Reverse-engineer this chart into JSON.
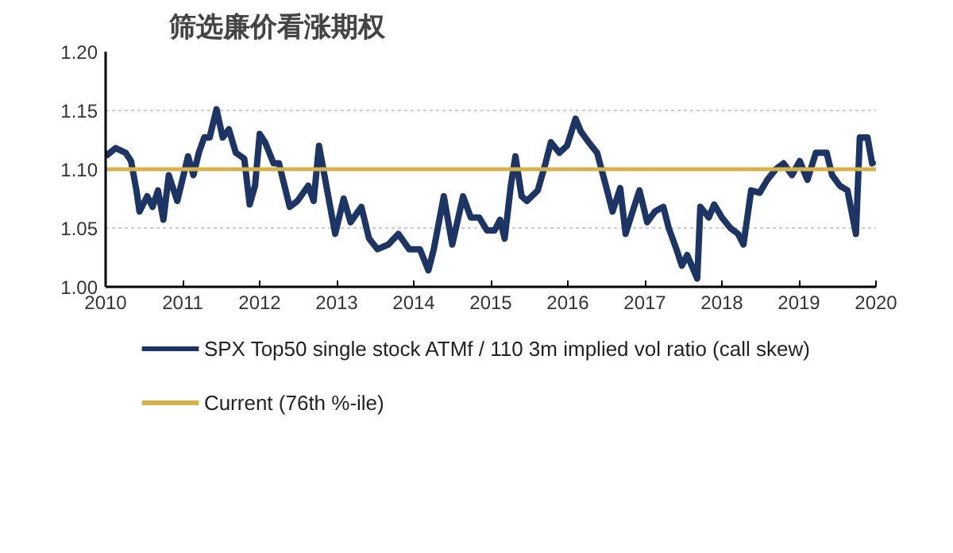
{
  "chart_data": {
    "type": "line",
    "title": "筛选廉价看涨期权",
    "xlim": [
      2010,
      2020
    ],
    "xticks": [
      2010,
      2011,
      2012,
      2013,
      2014,
      2015,
      2016,
      2017,
      2018,
      2019,
      2020
    ],
    "ylim": [
      1.0,
      1.2
    ],
    "yticks": [
      {
        "value": 1.0,
        "label": "1.00"
      },
      {
        "value": 1.05,
        "label": "1.05"
      },
      {
        "value": 1.1,
        "label": "1.10"
      },
      {
        "value": 1.15,
        "label": "1.15"
      },
      {
        "value": 1.2,
        "label": "1.20"
      }
    ],
    "grid": "y",
    "legend": "bottom",
    "line_style": "solid",
    "series": [
      {
        "name": "SPX Top50 single stock ATMf / 110 3m implied vol ratio (call skew)",
        "color": "#1c3564",
        "x": [
          2010.0,
          2010.13,
          2010.26,
          2010.33,
          2010.4,
          2010.44,
          2010.54,
          2010.61,
          2010.68,
          2010.75,
          2010.82,
          2010.93,
          2011.07,
          2011.14,
          2011.21,
          2011.28,
          2011.35,
          2011.44,
          2011.52,
          2011.6,
          2011.69,
          2011.8,
          2011.87,
          2011.94,
          2012.0,
          2012.07,
          2012.18,
          2012.25,
          2012.39,
          2012.49,
          2012.63,
          2012.7,
          2012.77,
          2012.84,
          2012.98,
          2013.09,
          2013.18,
          2013.32,
          2013.42,
          2013.53,
          2013.67,
          2013.8,
          2013.94,
          2014.08,
          2014.19,
          2014.26,
          2014.39,
          2014.5,
          2014.64,
          2014.74,
          2014.85,
          2014.95,
          2015.05,
          2015.12,
          2015.18,
          2015.26,
          2015.32,
          2015.4,
          2015.47,
          2015.61,
          2015.71,
          2015.78,
          2015.89,
          2015.99,
          2016.1,
          2016.17,
          2016.27,
          2016.38,
          2016.51,
          2016.58,
          2016.68,
          2016.75,
          2016.86,
          2016.93,
          2017.03,
          2017.13,
          2017.24,
          2017.31,
          2017.41,
          2017.48,
          2017.55,
          2017.68,
          2017.72,
          2017.83,
          2017.9,
          2018.0,
          2018.11,
          2018.21,
          2018.28,
          2018.38,
          2018.49,
          2018.59,
          2018.7,
          2018.8,
          2018.91,
          2019.01,
          2019.11,
          2019.22,
          2019.36,
          2019.43,
          2019.53,
          2019.63,
          2019.74,
          2019.79,
          2019.89,
          2019.95,
          2019.99
        ],
        "values": [
          1.111,
          1.118,
          1.114,
          1.107,
          1.082,
          1.064,
          1.077,
          1.068,
          1.082,
          1.057,
          1.095,
          1.073,
          1.111,
          1.095,
          1.114,
          1.127,
          1.127,
          1.151,
          1.127,
          1.134,
          1.114,
          1.109,
          1.07,
          1.086,
          1.13,
          1.123,
          1.105,
          1.105,
          1.068,
          1.073,
          1.086,
          1.073,
          1.12,
          1.095,
          1.045,
          1.075,
          1.055,
          1.068,
          1.041,
          1.032,
          1.036,
          1.045,
          1.032,
          1.032,
          1.014,
          1.032,
          1.077,
          1.036,
          1.077,
          1.059,
          1.059,
          1.048,
          1.048,
          1.057,
          1.041,
          1.086,
          1.111,
          1.077,
          1.073,
          1.082,
          1.105,
          1.123,
          1.114,
          1.12,
          1.143,
          1.132,
          1.123,
          1.114,
          1.082,
          1.064,
          1.084,
          1.045,
          1.068,
          1.082,
          1.055,
          1.064,
          1.068,
          1.05,
          1.032,
          1.018,
          1.027,
          1.007,
          1.068,
          1.059,
          1.07,
          1.059,
          1.05,
          1.045,
          1.036,
          1.082,
          1.08,
          1.091,
          1.1,
          1.105,
          1.095,
          1.107,
          1.091,
          1.114,
          1.114,
          1.095,
          1.086,
          1.082,
          1.045,
          1.127,
          1.127,
          1.105,
          1.107
        ]
      },
      {
        "name": "Current (76th %-ile)",
        "color": "#d4b24c",
        "x": [
          2010,
          2020
        ],
        "values": [
          1.1,
          1.1
        ]
      }
    ]
  }
}
